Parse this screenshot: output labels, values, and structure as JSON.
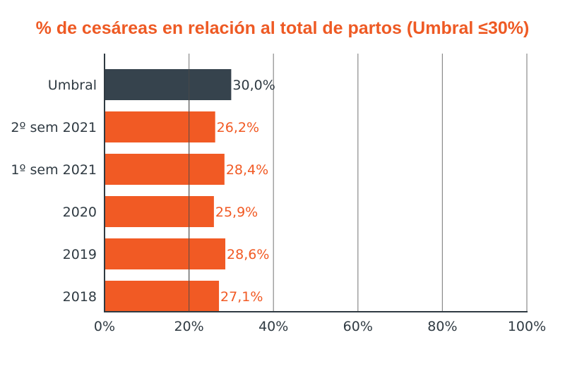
{
  "chart_data": {
    "type": "bar",
    "orientation": "horizontal",
    "title": "% de cesáreas en relación al total de partos (Umbral ≤30%)",
    "categories": [
      "Umbral",
      "2º sem 2021",
      "1º sem 2021",
      "2020",
      "2019",
      "2018"
    ],
    "values": [
      30.0,
      26.2,
      28.4,
      25.9,
      28.6,
      27.1
    ],
    "value_labels": [
      "30,0%",
      "26,2%",
      "28,4%",
      "25,9%",
      "28,6%",
      "27,1%"
    ],
    "xlim": [
      0,
      100
    ],
    "x_ticks": [
      0,
      20,
      40,
      60,
      80,
      100
    ],
    "x_tick_labels": [
      "0%",
      "20%",
      "40%",
      "60%",
      "80%",
      "100%"
    ],
    "grid": "vertical",
    "colors": {
      "highlight": "#36434d",
      "bar": "#f15a24",
      "title": "#ee5a24",
      "highlight_label": "#2f3a42",
      "bar_label": "#f15a24",
      "grid": "#8a8a8a",
      "axis": "#2f3a42"
    },
    "highlight_index": 0
  }
}
